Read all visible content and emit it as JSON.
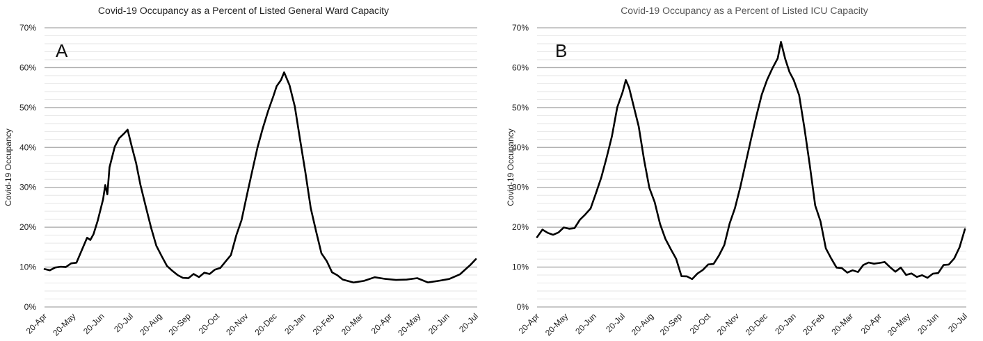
{
  "chart_data": [
    {
      "type": "line",
      "panel_label": "A",
      "title": "Covid-19 Occupancy as a Percent of Listed General Ward Capacity",
      "xlabel": "",
      "ylabel": "Covid-19 Occupancy",
      "ylim": [
        0,
        70
      ],
      "y_ticks": [
        "0%",
        "10%",
        "20%",
        "30%",
        "40%",
        "50%",
        "60%",
        "70%"
      ],
      "x_ticks": [
        "20-Apr",
        "20-May",
        "20-Jun",
        "20-Jul",
        "20-Aug",
        "20-Sep",
        "20-Oct",
        "20-Nov",
        "20-Dec",
        "20-Jan",
        "20-Feb",
        "20-Mar",
        "20-Apr",
        "20-May",
        "20-Jun",
        "20-Jul"
      ],
      "grid": "horizontal",
      "series": [
        {
          "values": [
            [
              0,
              9.5
            ],
            [
              0.25,
              9.3
            ],
            [
              0.5,
              9.8
            ],
            [
              0.75,
              10.0
            ],
            [
              1.0,
              10.3
            ],
            [
              1.25,
              10.5
            ],
            [
              1.5,
              11.5
            ],
            [
              1.75,
              14
            ],
            [
              2.0,
              17.5
            ],
            [
              2.15,
              17.0
            ],
            [
              2.3,
              18.5
            ],
            [
              2.5,
              22
            ],
            [
              2.75,
              26.5
            ],
            [
              2.85,
              31
            ],
            [
              2.95,
              28
            ],
            [
              3.05,
              35
            ],
            [
              3.3,
              40
            ],
            [
              3.5,
              42.5
            ],
            [
              3.75,
              43.5
            ],
            [
              3.9,
              44.5
            ],
            [
              4.1,
              40
            ],
            [
              4.3,
              36
            ],
            [
              4.5,
              31
            ],
            [
              4.75,
              25
            ],
            [
              5.0,
              20
            ],
            [
              5.25,
              15.5
            ],
            [
              5.5,
              12.5
            ],
            [
              5.75,
              10.5
            ],
            [
              6.0,
              9
            ],
            [
              6.25,
              8
            ],
            [
              6.5,
              7.2
            ],
            [
              6.75,
              7.5
            ],
            [
              7.0,
              7.8
            ],
            [
              7.25,
              8
            ],
            [
              7.5,
              8.2
            ],
            [
              7.75,
              8.5
            ],
            [
              8.0,
              9.2
            ],
            [
              8.25,
              10
            ],
            [
              8.5,
              11
            ],
            [
              8.75,
              13.5
            ],
            [
              9.0,
              17.5
            ],
            [
              9.25,
              22
            ],
            [
              9.5,
              28
            ],
            [
              9.75,
              34
            ],
            [
              10.0,
              40
            ],
            [
              10.25,
              45
            ],
            [
              10.5,
              49
            ],
            [
              10.75,
              53
            ],
            [
              10.9,
              55
            ],
            [
              11.1,
              57
            ],
            [
              11.25,
              58.5
            ],
            [
              11.5,
              56
            ],
            [
              11.75,
              50
            ],
            [
              12.0,
              42
            ],
            [
              12.25,
              33.5
            ],
            [
              12.5,
              25
            ],
            [
              12.75,
              18.5
            ],
            [
              13.0,
              14
            ],
            [
              13.25,
              11
            ],
            [
              13.5,
              9
            ],
            [
              13.75,
              7.8
            ],
            [
              14.0,
              7
            ],
            [
              14.5,
              6.5
            ],
            [
              15.0,
              6.8
            ],
            [
              15.5,
              7.3
            ],
            [
              16.0,
              7.0
            ],
            [
              16.5,
              6.8
            ],
            [
              17.0,
              6.5
            ],
            [
              17.5,
              6.8
            ],
            [
              18.0,
              6.0
            ],
            [
              18.5,
              6.2
            ],
            [
              19.0,
              6.5
            ],
            [
              19.5,
              8
            ],
            [
              20.0,
              10.5
            ],
            [
              20.25,
              12
            ]
          ]
        }
      ]
    },
    {
      "type": "line",
      "panel_label": "B",
      "title": "Covid-19 Occupancy as a Percent of Listed ICU Capacity",
      "xlabel": "",
      "ylabel": "Covid-19 Occupancy",
      "ylim": [
        0,
        70
      ],
      "y_ticks": [
        "0%",
        "10%",
        "20%",
        "30%",
        "40%",
        "50%",
        "60%",
        "70%"
      ],
      "x_ticks": [
        "20-Apr",
        "20-May",
        "20-Jun",
        "20-Jul",
        "20-Aug",
        "20-Sep",
        "20-Oct",
        "20-Nov",
        "20-Dec",
        "20-Jan",
        "20-Feb",
        "20-Mar",
        "20-Apr",
        "20-May",
        "20-Jun",
        "20-Jul"
      ],
      "grid": "horizontal",
      "series": [
        {
          "values": [
            [
              0,
              17.5
            ],
            [
              0.25,
              19.5
            ],
            [
              0.5,
              18.5
            ],
            [
              0.75,
              18
            ],
            [
              1.0,
              19
            ],
            [
              1.25,
              19.5
            ],
            [
              1.5,
              20
            ],
            [
              1.75,
              19.5
            ],
            [
              2.0,
              22
            ],
            [
              2.25,
              23
            ],
            [
              2.5,
              25
            ],
            [
              2.75,
              28
            ],
            [
              3.0,
              33
            ],
            [
              3.25,
              37
            ],
            [
              3.5,
              43
            ],
            [
              3.75,
              50
            ],
            [
              4.0,
              54
            ],
            [
              4.15,
              57
            ],
            [
              4.3,
              55
            ],
            [
              4.5,
              51
            ],
            [
              4.75,
              45
            ],
            [
              5.0,
              37
            ],
            [
              5.25,
              30
            ],
            [
              5.5,
              26
            ],
            [
              5.75,
              21
            ],
            [
              6.0,
              17
            ],
            [
              6.25,
              14.5
            ],
            [
              6.5,
              12
            ],
            [
              6.75,
              8
            ],
            [
              7.0,
              7.2
            ],
            [
              7.25,
              7.5
            ],
            [
              7.5,
              8
            ],
            [
              7.75,
              9.5
            ],
            [
              8.0,
              10.5
            ],
            [
              8.25,
              11
            ],
            [
              8.5,
              12.5
            ],
            [
              8.75,
              16
            ],
            [
              9.0,
              20.5
            ],
            [
              9.25,
              25
            ],
            [
              9.5,
              30
            ],
            [
              9.75,
              36
            ],
            [
              10.0,
              42
            ],
            [
              10.25,
              48
            ],
            [
              10.5,
              53
            ],
            [
              10.75,
              57
            ],
            [
              11.0,
              60
            ],
            [
              11.25,
              62
            ],
            [
              11.4,
              66
            ],
            [
              11.6,
              62
            ],
            [
              11.8,
              59
            ],
            [
              12.0,
              57
            ],
            [
              12.25,
              53
            ],
            [
              12.5,
              45
            ],
            [
              12.75,
              35
            ],
            [
              13.0,
              26
            ],
            [
              13.25,
              21
            ],
            [
              13.5,
              15
            ],
            [
              13.75,
              12
            ],
            [
              14.0,
              10
            ],
            [
              14.25,
              9.5
            ],
            [
              14.5,
              9
            ],
            [
              14.75,
              8.8
            ],
            [
              15.0,
              9
            ],
            [
              15.25,
              10.5
            ],
            [
              15.5,
              11
            ],
            [
              15.75,
              11
            ],
            [
              16.0,
              11
            ],
            [
              16.25,
              11.2
            ],
            [
              16.5,
              10
            ],
            [
              16.75,
              9
            ],
            [
              17.0,
              9.5
            ],
            [
              17.25,
              8.5
            ],
            [
              17.5,
              8
            ],
            [
              17.75,
              7.8
            ],
            [
              18.0,
              7.8
            ],
            [
              18.25,
              7.5
            ],
            [
              18.5,
              8
            ],
            [
              18.75,
              9
            ],
            [
              19.0,
              10
            ],
            [
              19.25,
              11
            ],
            [
              19.5,
              12
            ],
            [
              19.75,
              15
            ],
            [
              20.0,
              19.5
            ]
          ]
        }
      ]
    }
  ]
}
